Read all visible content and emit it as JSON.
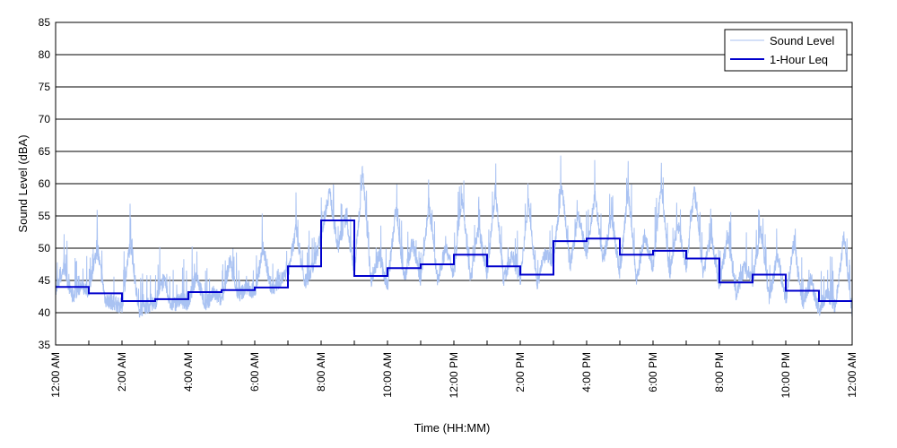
{
  "chart_data": {
    "type": "line",
    "title": "",
    "xlabel": "Time (HH:MM)",
    "ylabel": "Sound Level (dBA)",
    "xlim": [
      0,
      24
    ],
    "ylim": [
      35,
      85
    ],
    "y_ticks": [
      35,
      40,
      45,
      50,
      55,
      60,
      65,
      70,
      75,
      80,
      85
    ],
    "x_ticks": [
      0,
      2,
      4,
      6,
      8,
      10,
      12,
      14,
      16,
      18,
      20,
      22,
      24
    ],
    "x_tick_labels": [
      "12:00 AM",
      "2:00 AM",
      "4:00 AM",
      "6:00 AM",
      "8:00 AM",
      "10:00 AM",
      "12:00 PM",
      "2:00 PM",
      "4:00 PM",
      "6:00 PM",
      "8:00 PM",
      "10:00 PM",
      "12:00 AM"
    ],
    "x_minor_ticks": [
      1,
      3,
      5,
      7,
      9,
      11,
      13,
      15,
      17,
      19,
      21,
      23
    ],
    "grid": "horizontal",
    "legend": "top-right",
    "series": [
      {
        "name": "Sound Level",
        "color": "#a9c2f2",
        "x": [
          0,
          0.25,
          0.5,
          0.75,
          1,
          1.25,
          1.5,
          1.75,
          2,
          2.25,
          2.5,
          2.75,
          3,
          3.25,
          3.5,
          3.75,
          4,
          4.25,
          4.5,
          4.75,
          5,
          5.25,
          5.5,
          5.75,
          6,
          6.25,
          6.5,
          6.75,
          7,
          7.25,
          7.5,
          7.75,
          8,
          8.25,
          8.5,
          8.75,
          9,
          9.25,
          9.5,
          9.75,
          10,
          10.25,
          10.5,
          10.75,
          11,
          11.25,
          11.5,
          11.75,
          12,
          12.25,
          12.5,
          12.75,
          13,
          13.25,
          13.5,
          13.75,
          14,
          14.25,
          14.5,
          14.75,
          15,
          15.25,
          15.5,
          15.75,
          16,
          16.25,
          16.5,
          16.75,
          17,
          17.25,
          17.5,
          17.75,
          18,
          18.25,
          18.5,
          18.75,
          19,
          19.25,
          19.5,
          19.75,
          20,
          20.25,
          20.5,
          20.75,
          21,
          21.25,
          21.5,
          21.75,
          22,
          22.25,
          22.5,
          22.75,
          23,
          23.25,
          23.5,
          23.75,
          24
        ],
        "y": [
          43,
          47,
          42.5,
          44,
          43.5,
          50,
          42,
          41.5,
          41,
          51,
          40.5,
          41,
          41.5,
          45,
          41,
          42,
          41.5,
          46,
          41,
          43,
          42,
          48,
          42.5,
          44,
          43,
          50,
          43.5,
          45,
          46,
          53,
          44.5,
          47,
          52,
          59,
          50,
          55,
          46,
          62,
          45,
          49,
          44,
          56,
          45,
          51,
          45,
          57,
          45,
          50,
          46,
          58,
          45,
          53,
          46,
          59,
          45,
          49,
          45,
          57,
          44.5,
          49,
          48,
          60,
          47,
          55,
          49,
          58,
          48,
          55,
          46,
          59,
          45,
          52,
          47,
          60,
          46,
          54,
          47,
          59,
          46,
          52,
          44,
          52,
          43,
          47,
          45,
          53,
          42,
          49,
          42,
          51,
          41,
          45,
          40.5,
          43,
          41,
          52,
          40
        ]
      },
      {
        "name": "1-Hour Leq",
        "color": "#0000cc",
        "step": "post",
        "x": [
          0,
          1,
          2,
          3,
          4,
          5,
          6,
          7,
          8,
          9,
          10,
          11,
          12,
          13,
          14,
          15,
          16,
          17,
          18,
          19,
          20,
          21,
          22,
          23
        ],
        "y": [
          44,
          43,
          41.8,
          42.1,
          43.2,
          43.5,
          43.9,
          47.2,
          54.3,
          45.7,
          46.9,
          47.5,
          49,
          47.2,
          45.9,
          51.1,
          51.5,
          49,
          49.6,
          48.4,
          44.7,
          45.9,
          43.4,
          41.8
        ]
      }
    ]
  }
}
